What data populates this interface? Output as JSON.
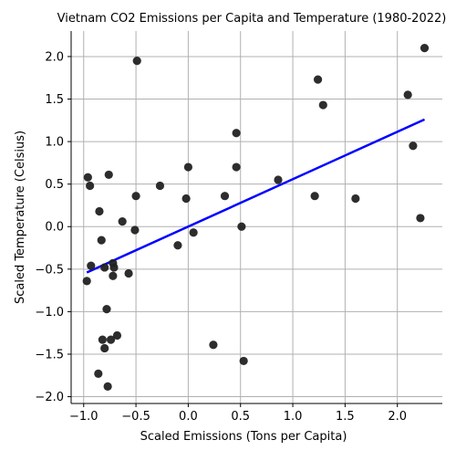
{
  "chart_data": {
    "type": "scatter",
    "title": "Vietnam CO2 Emissions per Capita and Temperature (1980-2022)",
    "xlabel": "Scaled Emissions (Tons per Capita)",
    "ylabel": "Scaled Temperature (Celsius)",
    "xlim": [
      -1.12,
      2.43
    ],
    "ylim": [
      -2.08,
      2.3
    ],
    "x_ticks": [
      -1.0,
      -0.5,
      0.0,
      0.5,
      1.0,
      1.5,
      2.0
    ],
    "x_tick_labels": [
      "−1.0",
      "−0.5",
      "0.0",
      "0.5",
      "1.0",
      "1.5",
      "2.0"
    ],
    "y_ticks": [
      -2.0,
      -1.5,
      -1.0,
      -0.5,
      0.0,
      0.5,
      1.0,
      1.5,
      2.0
    ],
    "y_tick_labels": [
      "−2.0",
      "−1.5",
      "−1.0",
      "−0.5",
      "0.0",
      "0.5",
      "1.0",
      "1.5",
      "2.0"
    ],
    "grid": true,
    "colors": {
      "points": "#222222",
      "fit_line": "#0000ff",
      "grid": "#b0b0b0",
      "axis": "#000000"
    },
    "series": [
      {
        "type": "scatter",
        "points": [
          {
            "x": -0.96,
            "y": 0.58
          },
          {
            "x": -0.94,
            "y": 0.48
          },
          {
            "x": -0.76,
            "y": 0.61
          },
          {
            "x": -0.85,
            "y": 0.18
          },
          {
            "x": -0.63,
            "y": 0.06
          },
          {
            "x": -0.5,
            "y": 0.36
          },
          {
            "x": -0.51,
            "y": -0.04
          },
          {
            "x": -0.83,
            "y": -0.16
          },
          {
            "x": -0.93,
            "y": -0.46
          },
          {
            "x": -0.8,
            "y": -0.48
          },
          {
            "x": -0.72,
            "y": -0.43
          },
          {
            "x": -0.71,
            "y": -0.48
          },
          {
            "x": -0.72,
            "y": -0.58
          },
          {
            "x": -0.57,
            "y": -0.55
          },
          {
            "x": -0.97,
            "y": -0.64
          },
          {
            "x": -0.78,
            "y": -0.97
          },
          {
            "x": -0.82,
            "y": -1.33
          },
          {
            "x": -0.74,
            "y": -1.33
          },
          {
            "x": -0.68,
            "y": -1.28
          },
          {
            "x": -0.8,
            "y": -1.43
          },
          {
            "x": -0.86,
            "y": -1.73
          },
          {
            "x": -0.77,
            "y": -1.88
          },
          {
            "x": -0.49,
            "y": 1.95
          },
          {
            "x": -0.27,
            "y": 0.48
          },
          {
            "x": -0.1,
            "y": -0.22
          },
          {
            "x": 0.0,
            "y": 0.7
          },
          {
            "x": -0.02,
            "y": 0.33
          },
          {
            "x": 0.05,
            "y": -0.07
          },
          {
            "x": 0.24,
            "y": -1.39
          },
          {
            "x": 0.35,
            "y": 0.36
          },
          {
            "x": 0.46,
            "y": 1.1
          },
          {
            "x": 0.46,
            "y": 0.7
          },
          {
            "x": 0.51,
            "y": 0.0
          },
          {
            "x": 0.53,
            "y": -1.58
          },
          {
            "x": 0.86,
            "y": 0.55
          },
          {
            "x": 1.21,
            "y": 0.36
          },
          {
            "x": 1.24,
            "y": 1.73
          },
          {
            "x": 1.29,
            "y": 1.43
          },
          {
            "x": 1.6,
            "y": 0.33
          },
          {
            "x": 2.1,
            "y": 1.55
          },
          {
            "x": 2.15,
            "y": 0.95
          },
          {
            "x": 2.22,
            "y": 0.1
          },
          {
            "x": 2.26,
            "y": 2.1
          }
        ]
      },
      {
        "type": "line",
        "points": [
          {
            "x": -0.97,
            "y": -0.54
          },
          {
            "x": 2.26,
            "y": 1.26
          }
        ]
      }
    ]
  }
}
